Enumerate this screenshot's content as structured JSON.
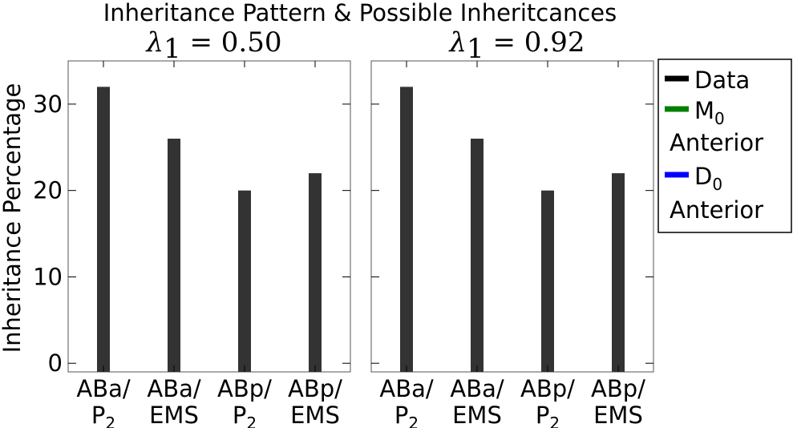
{
  "chart_data": {
    "type": "bar",
    "title": "Inheritance Pattern & Possible Inheritcances",
    "ylabel": "Inheritance Percentage",
    "ylim": [
      -1,
      35
    ],
    "yticks": [
      0,
      10,
      20,
      30
    ],
    "categories": [
      {
        "line1": "ABa/",
        "line2": "P",
        "sub": "2"
      },
      {
        "line1": "ABa/",
        "line2": "EMS",
        "sub": ""
      },
      {
        "line1": "ABp/",
        "line2": "P",
        "sub": "2"
      },
      {
        "line1": "ABp/",
        "line2": "EMS",
        "sub": ""
      }
    ],
    "panels": [
      {
        "subtitle_sym": "λ",
        "subtitle_sub": "1",
        "subtitle_val": " = 0.50",
        "series": [
          {
            "name": "Data",
            "values": [
              32,
              26,
              20,
              22
            ]
          }
        ]
      },
      {
        "subtitle_sym": "λ",
        "subtitle_sub": "1",
        "subtitle_val": " = 0.92",
        "series": [
          {
            "name": "Data",
            "values": [
              32,
              26,
              20,
              22
            ]
          }
        ]
      }
    ],
    "legend": [
      {
        "label": "Data",
        "sub": "",
        "line2": "",
        "color": "#000000"
      },
      {
        "label": "M",
        "sub": "0",
        "line2": "Anterior",
        "color": "#008000"
      },
      {
        "label": "D",
        "sub": "0",
        "line2": "Anterior",
        "color": "#0000ff"
      }
    ],
    "bar_color": "#333333",
    "legend_position": "right"
  }
}
